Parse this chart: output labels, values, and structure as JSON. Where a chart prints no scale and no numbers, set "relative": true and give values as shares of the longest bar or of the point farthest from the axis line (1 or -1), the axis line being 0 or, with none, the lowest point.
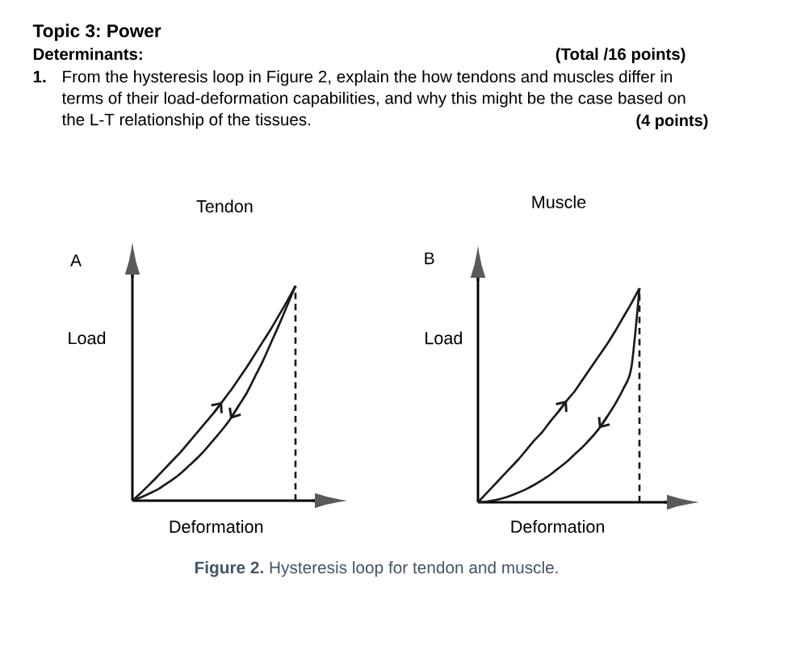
{
  "chart_data": [
    {
      "type": "other",
      "title": "Topic 3: Power",
      "subtitle": "Determinants:",
      "annotations": [
        "(Total /16 points)",
        "1.",
        "From the hysteresis loop in Figure 2, explain the how tendons and muscles differ in terms of their load-deformation capabilities, and why this might be the case based on the L-T relationship of the tissues.",
        "(4 points)"
      ]
    },
    {
      "type": "line",
      "relative": true,
      "tick_labels": false,
      "title": "Tendon",
      "xlabel": "Deformation",
      "ylabel": "Load",
      "annotations": [
        "A"
      ],
      "categories": [
        null,
        null,
        null,
        null,
        null,
        null,
        null,
        null,
        null,
        null,
        null,
        null,
        null,
        null,
        null,
        null,
        null,
        null,
        null,
        null,
        null
      ],
      "series": [
        {
          "color": "#1a1a1a",
          "values": [
            0,
            0.035,
            0.072,
            0.11,
            0.15,
            0.19,
            0.23,
            0.275,
            0.32,
            0.365,
            0.41,
            0.46,
            0.51,
            0.565,
            0.62,
            0.68,
            0.74,
            0.8,
            0.865,
            0.93,
            1
          ]
        },
        {
          "color": "#1a1a1a",
          "values": [
            0,
            0.015,
            0.032,
            0.05,
            0.075,
            0.1,
            0.13,
            0.165,
            0.2,
            0.24,
            0.285,
            0.33,
            0.38,
            0.44,
            0.5,
            0.575,
            0.65,
            0.735,
            0.82,
            0.91,
            1
          ]
        }
      ]
    },
    {
      "type": "line",
      "relative": true,
      "tick_labels": false,
      "title": "Muscle",
      "xlabel": "Deformation",
      "ylabel": "Load",
      "annotations": [
        "B"
      ],
      "categories": [
        null,
        null,
        null,
        null,
        null,
        null,
        null,
        null,
        null,
        null,
        null,
        null,
        null,
        null,
        null,
        null,
        null,
        null,
        null,
        null,
        null
      ],
      "series": [
        {
          "color": "#1a1a1a",
          "values": [
            0,
            0.04,
            0.08,
            0.12,
            0.16,
            0.2,
            0.245,
            0.29,
            0.33,
            0.38,
            0.425,
            0.475,
            0.52,
            0.575,
            0.63,
            0.685,
            0.74,
            0.8,
            0.865,
            0.93,
            1
          ]
        },
        {
          "color": "#1a1a1a",
          "values": [
            0,
            0.003,
            0.009,
            0.018,
            0.03,
            0.045,
            0.062,
            0.082,
            0.105,
            0.13,
            0.16,
            0.19,
            0.225,
            0.26,
            0.3,
            0.345,
            0.4,
            0.46,
            0.53,
            0.63,
            1
          ]
        }
      ]
    },
    {
      "type": "other",
      "annotations": [
        "**Figure 2.** Hysteresis loop for tendon and muscle."
      ]
    }
  ]
}
